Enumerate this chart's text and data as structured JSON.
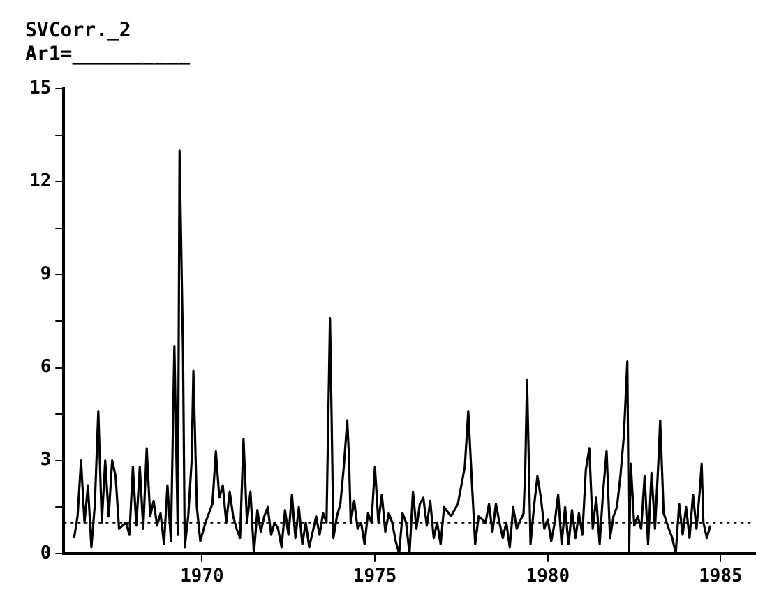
{
  "chart_data": {
    "type": "line",
    "title": "SVCorr._2",
    "annotations": [
      "Ar1=__________"
    ],
    "x": [
      1966.3,
      1966.4,
      1966.5,
      1966.6,
      1966.7,
      1966.8,
      1966.9,
      1967.0,
      1967.1,
      1967.2,
      1967.3,
      1967.4,
      1967.5,
      1967.6,
      1967.8,
      1967.9,
      1968.0,
      1968.1,
      1968.2,
      1968.3,
      1968.4,
      1968.5,
      1968.6,
      1968.7,
      1968.8,
      1968.9,
      1969.0,
      1969.1,
      1969.2,
      1969.3,
      1969.35,
      1969.45,
      1969.5,
      1969.6,
      1969.7,
      1969.75,
      1969.85,
      1969.95,
      1970.1,
      1970.3,
      1970.4,
      1970.5,
      1970.6,
      1970.7,
      1970.8,
      1970.9,
      1971.0,
      1971.1,
      1971.2,
      1971.3,
      1971.4,
      1971.5,
      1971.6,
      1971.7,
      1971.8,
      1971.9,
      1972.0,
      1972.1,
      1972.2,
      1972.3,
      1972.4,
      1972.5,
      1972.6,
      1972.7,
      1972.8,
      1972.9,
      1973.0,
      1973.1,
      1973.3,
      1973.4,
      1973.5,
      1973.6,
      1973.7,
      1973.75,
      1973.8,
      1973.9,
      1974.0,
      1974.1,
      1974.2,
      1974.25,
      1974.3,
      1974.4,
      1974.5,
      1974.6,
      1974.7,
      1974.8,
      1974.9,
      1975.0,
      1975.1,
      1975.2,
      1975.3,
      1975.4,
      1975.5,
      1975.6,
      1975.7,
      1975.8,
      1975.9,
      1976.0,
      1976.1,
      1976.2,
      1976.3,
      1976.4,
      1976.5,
      1976.6,
      1976.7,
      1976.8,
      1976.9,
      1977.0,
      1977.2,
      1977.4,
      1977.6,
      1977.7,
      1977.8,
      1977.9,
      1978.0,
      1978.2,
      1978.3,
      1978.4,
      1978.5,
      1978.6,
      1978.7,
      1978.8,
      1978.9,
      1979.0,
      1979.1,
      1979.3,
      1979.35,
      1979.4,
      1979.45,
      1979.5,
      1979.6,
      1979.7,
      1979.8,
      1979.9,
      1980.0,
      1980.1,
      1980.2,
      1980.3,
      1980.4,
      1980.5,
      1980.6,
      1980.7,
      1980.8,
      1980.9,
      1981.0,
      1981.1,
      1981.2,
      1981.3,
      1981.4,
      1981.5,
      1981.6,
      1981.7,
      1981.8,
      1981.9,
      1982.0,
      1982.1,
      1982.2,
      1982.3,
      1982.35,
      1982.4,
      1982.5,
      1982.6,
      1982.7,
      1982.8,
      1982.9,
      1983.0,
      1983.1,
      1983.2,
      1983.25,
      1983.35,
      1983.5,
      1983.6,
      1983.7,
      1983.8,
      1983.9,
      1984.0,
      1984.1,
      1984.2,
      1984.3,
      1984.4,
      1984.45,
      1984.5,
      1984.6,
      1984.7
    ],
    "series": [
      {
        "color": "#000000",
        "values": [
          0.5,
          1.2,
          3.0,
          1.0,
          2.2,
          0.2,
          1.6,
          4.6,
          1.0,
          3.0,
          1.2,
          3.0,
          2.5,
          0.8,
          1.0,
          0.6,
          2.8,
          0.9,
          2.8,
          0.8,
          3.4,
          1.2,
          1.7,
          0.9,
          1.3,
          0.3,
          2.2,
          0.4,
          6.7,
          0.6,
          13.0,
          6.5,
          0.2,
          1.2,
          3.0,
          5.9,
          1.5,
          0.4,
          1.0,
          1.6,
          3.3,
          1.8,
          2.2,
          1.0,
          2.0,
          1.2,
          0.8,
          0.5,
          3.7,
          1.0,
          2.0,
          0.0,
          1.4,
          0.7,
          1.2,
          1.5,
          0.6,
          1.0,
          0.8,
          0.2,
          1.4,
          0.6,
          1.9,
          0.5,
          1.5,
          0.3,
          1.0,
          0.2,
          1.2,
          0.6,
          1.3,
          1.0,
          7.6,
          4.2,
          0.5,
          1.2,
          1.6,
          2.8,
          4.3,
          3.1,
          1.0,
          1.7,
          0.8,
          1.0,
          0.3,
          1.3,
          1.0,
          2.8,
          1.0,
          1.9,
          0.7,
          1.3,
          1.0,
          0.4,
          0.0,
          1.3,
          1.0,
          0.0,
          2.0,
          0.8,
          1.6,
          1.8,
          0.9,
          1.7,
          0.5,
          1.0,
          0.3,
          1.5,
          1.2,
          1.6,
          2.8,
          4.6,
          2.4,
          0.3,
          1.2,
          1.0,
          1.6,
          0.7,
          1.6,
          1.0,
          0.5,
          1.0,
          0.2,
          1.5,
          0.8,
          1.3,
          2.8,
          5.6,
          3.0,
          0.3,
          1.5,
          2.5,
          1.8,
          0.8,
          1.1,
          0.4,
          1.0,
          1.9,
          0.3,
          1.5,
          0.3,
          1.4,
          0.5,
          1.3,
          0.6,
          2.7,
          3.4,
          0.8,
          1.8,
          0.3,
          2.0,
          3.3,
          0.5,
          1.2,
          1.5,
          2.5,
          3.8,
          6.2,
          0.0,
          2.9,
          0.9,
          1.2,
          0.8,
          2.5,
          0.3,
          2.6,
          0.8,
          3.0,
          4.3,
          1.3,
          0.8,
          0.5,
          0.0,
          1.6,
          0.6,
          1.5,
          0.5,
          1.9,
          0.8,
          2.1,
          2.9,
          1.0,
          0.5,
          0.9
        ]
      }
    ],
    "xlim": [
      1966,
      1986
    ],
    "xticks": [
      1970,
      1975,
      1980,
      1985
    ],
    "ylim": [
      0,
      15
    ],
    "yticks": [
      0,
      {
        "value": 1.5,
        "label": null
      },
      3,
      {
        "value": 4.5,
        "label": null
      },
      6,
      {
        "value": 7.5,
        "label": null
      },
      9,
      {
        "value": 10.5,
        "label": null
      },
      12,
      {
        "value": 13.5,
        "label": null
      },
      15
    ],
    "ref_lines": [
      {
        "axis": "y",
        "value": 1,
        "color": "#000000",
        "line_style": "dotted"
      }
    ],
    "grid": false,
    "legend": false,
    "marker": "none",
    "line_style": "solid"
  }
}
